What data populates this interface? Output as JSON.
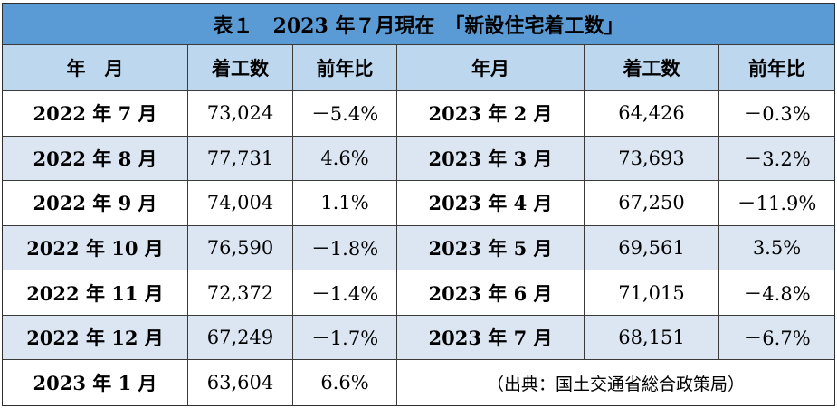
{
  "title": "表１　2023 年７月現在　「新設住宅着工数」",
  "headers": {
    "left": [
      "年　月",
      "着工数",
      "前年比"
    ],
    "right": [
      "年月",
      "着工数",
      "前年比"
    ]
  },
  "left_rows": [
    {
      "month": "2022 年 7 月",
      "starts": "73,024",
      "yoy": "－5.4%"
    },
    {
      "month": "2022 年 8 月",
      "starts": "77,731",
      "yoy": "4.6%"
    },
    {
      "month": "2022 年 9 月",
      "starts": "74,004",
      "yoy": "1.1%"
    },
    {
      "month": "2022 年 10 月",
      "starts": "76,590",
      "yoy": "－1.8%"
    },
    {
      "month": "2022 年 11 月",
      "starts": "72,372",
      "yoy": "－1.4%"
    },
    {
      "month": "2022 年 12 月",
      "starts": "67,249",
      "yoy": "－1.7%"
    },
    {
      "month": "2023 年 1 月",
      "starts": "63,604",
      "yoy": "6.6%"
    }
  ],
  "right_rows": [
    {
      "month": "2023 年 2 月",
      "starts": "64,426",
      "yoy": "－0.3%"
    },
    {
      "month": "2023 年 3 月",
      "starts": "73,693",
      "yoy": "－3.2%"
    },
    {
      "month": "2023 年 4 月",
      "starts": "67,250",
      "yoy": "－11.9%"
    },
    {
      "month": "2023 年 5 月",
      "starts": "69,561",
      "yoy": "3.5%"
    },
    {
      "month": "2023 年 6 月",
      "starts": "71,015",
      "yoy": "－4.8%"
    },
    {
      "month": "2023 年 7 月",
      "starts": "68,151",
      "yoy": "－6.7%"
    }
  ],
  "source": "（出典：国土交通省総合政策局）",
  "colors": {
    "title_bg": "#5b9bd5",
    "header_bg": "#bdd7ee",
    "alt_row_bg": "#dce6f2",
    "row_bg": "#ffffff"
  }
}
